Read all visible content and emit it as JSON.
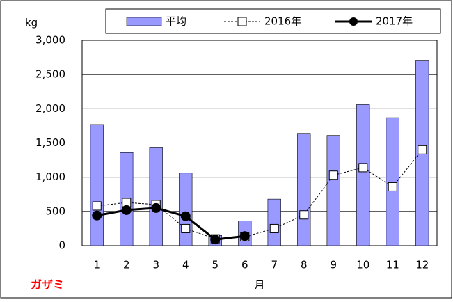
{
  "chart_data": {
    "type": "bar",
    "y_unit": "kg",
    "x_label": "月",
    "annotation": "ガザミ",
    "categories": [
      "1",
      "2",
      "3",
      "4",
      "5",
      "6",
      "7",
      "8",
      "9",
      "10",
      "11",
      "12"
    ],
    "series": [
      {
        "name": "平均",
        "type": "bar",
        "color": "#9999ff",
        "values": [
          1770,
          1360,
          1440,
          1060,
          150,
          360,
          680,
          1640,
          1610,
          2060,
          1870,
          2710
        ]
      },
      {
        "name": "2016年",
        "type": "line",
        "color": "#000000",
        "marker": "square-open",
        "dash": true,
        "values": [
          580,
          630,
          600,
          250,
          100,
          130,
          250,
          450,
          1030,
          1140,
          860,
          1400
        ]
      },
      {
        "name": "2017年",
        "type": "line",
        "color": "#000000",
        "marker": "circle",
        "dash": false,
        "values": [
          440,
          520,
          550,
          430,
          90,
          140,
          null,
          null,
          null,
          null,
          null,
          null
        ]
      }
    ],
    "ylim": [
      0,
      3000
    ],
    "yticks": [
      0,
      500,
      {
        "value": 1000,
        "label": "1,000"
      },
      {
        "value": 1500,
        "label": "1,500"
      },
      {
        "value": 2000,
        "label": "2,000"
      },
      {
        "value": 2500,
        "label": "2,500"
      },
      {
        "value": 3000,
        "label": "3,000"
      }
    ],
    "grid": true
  }
}
